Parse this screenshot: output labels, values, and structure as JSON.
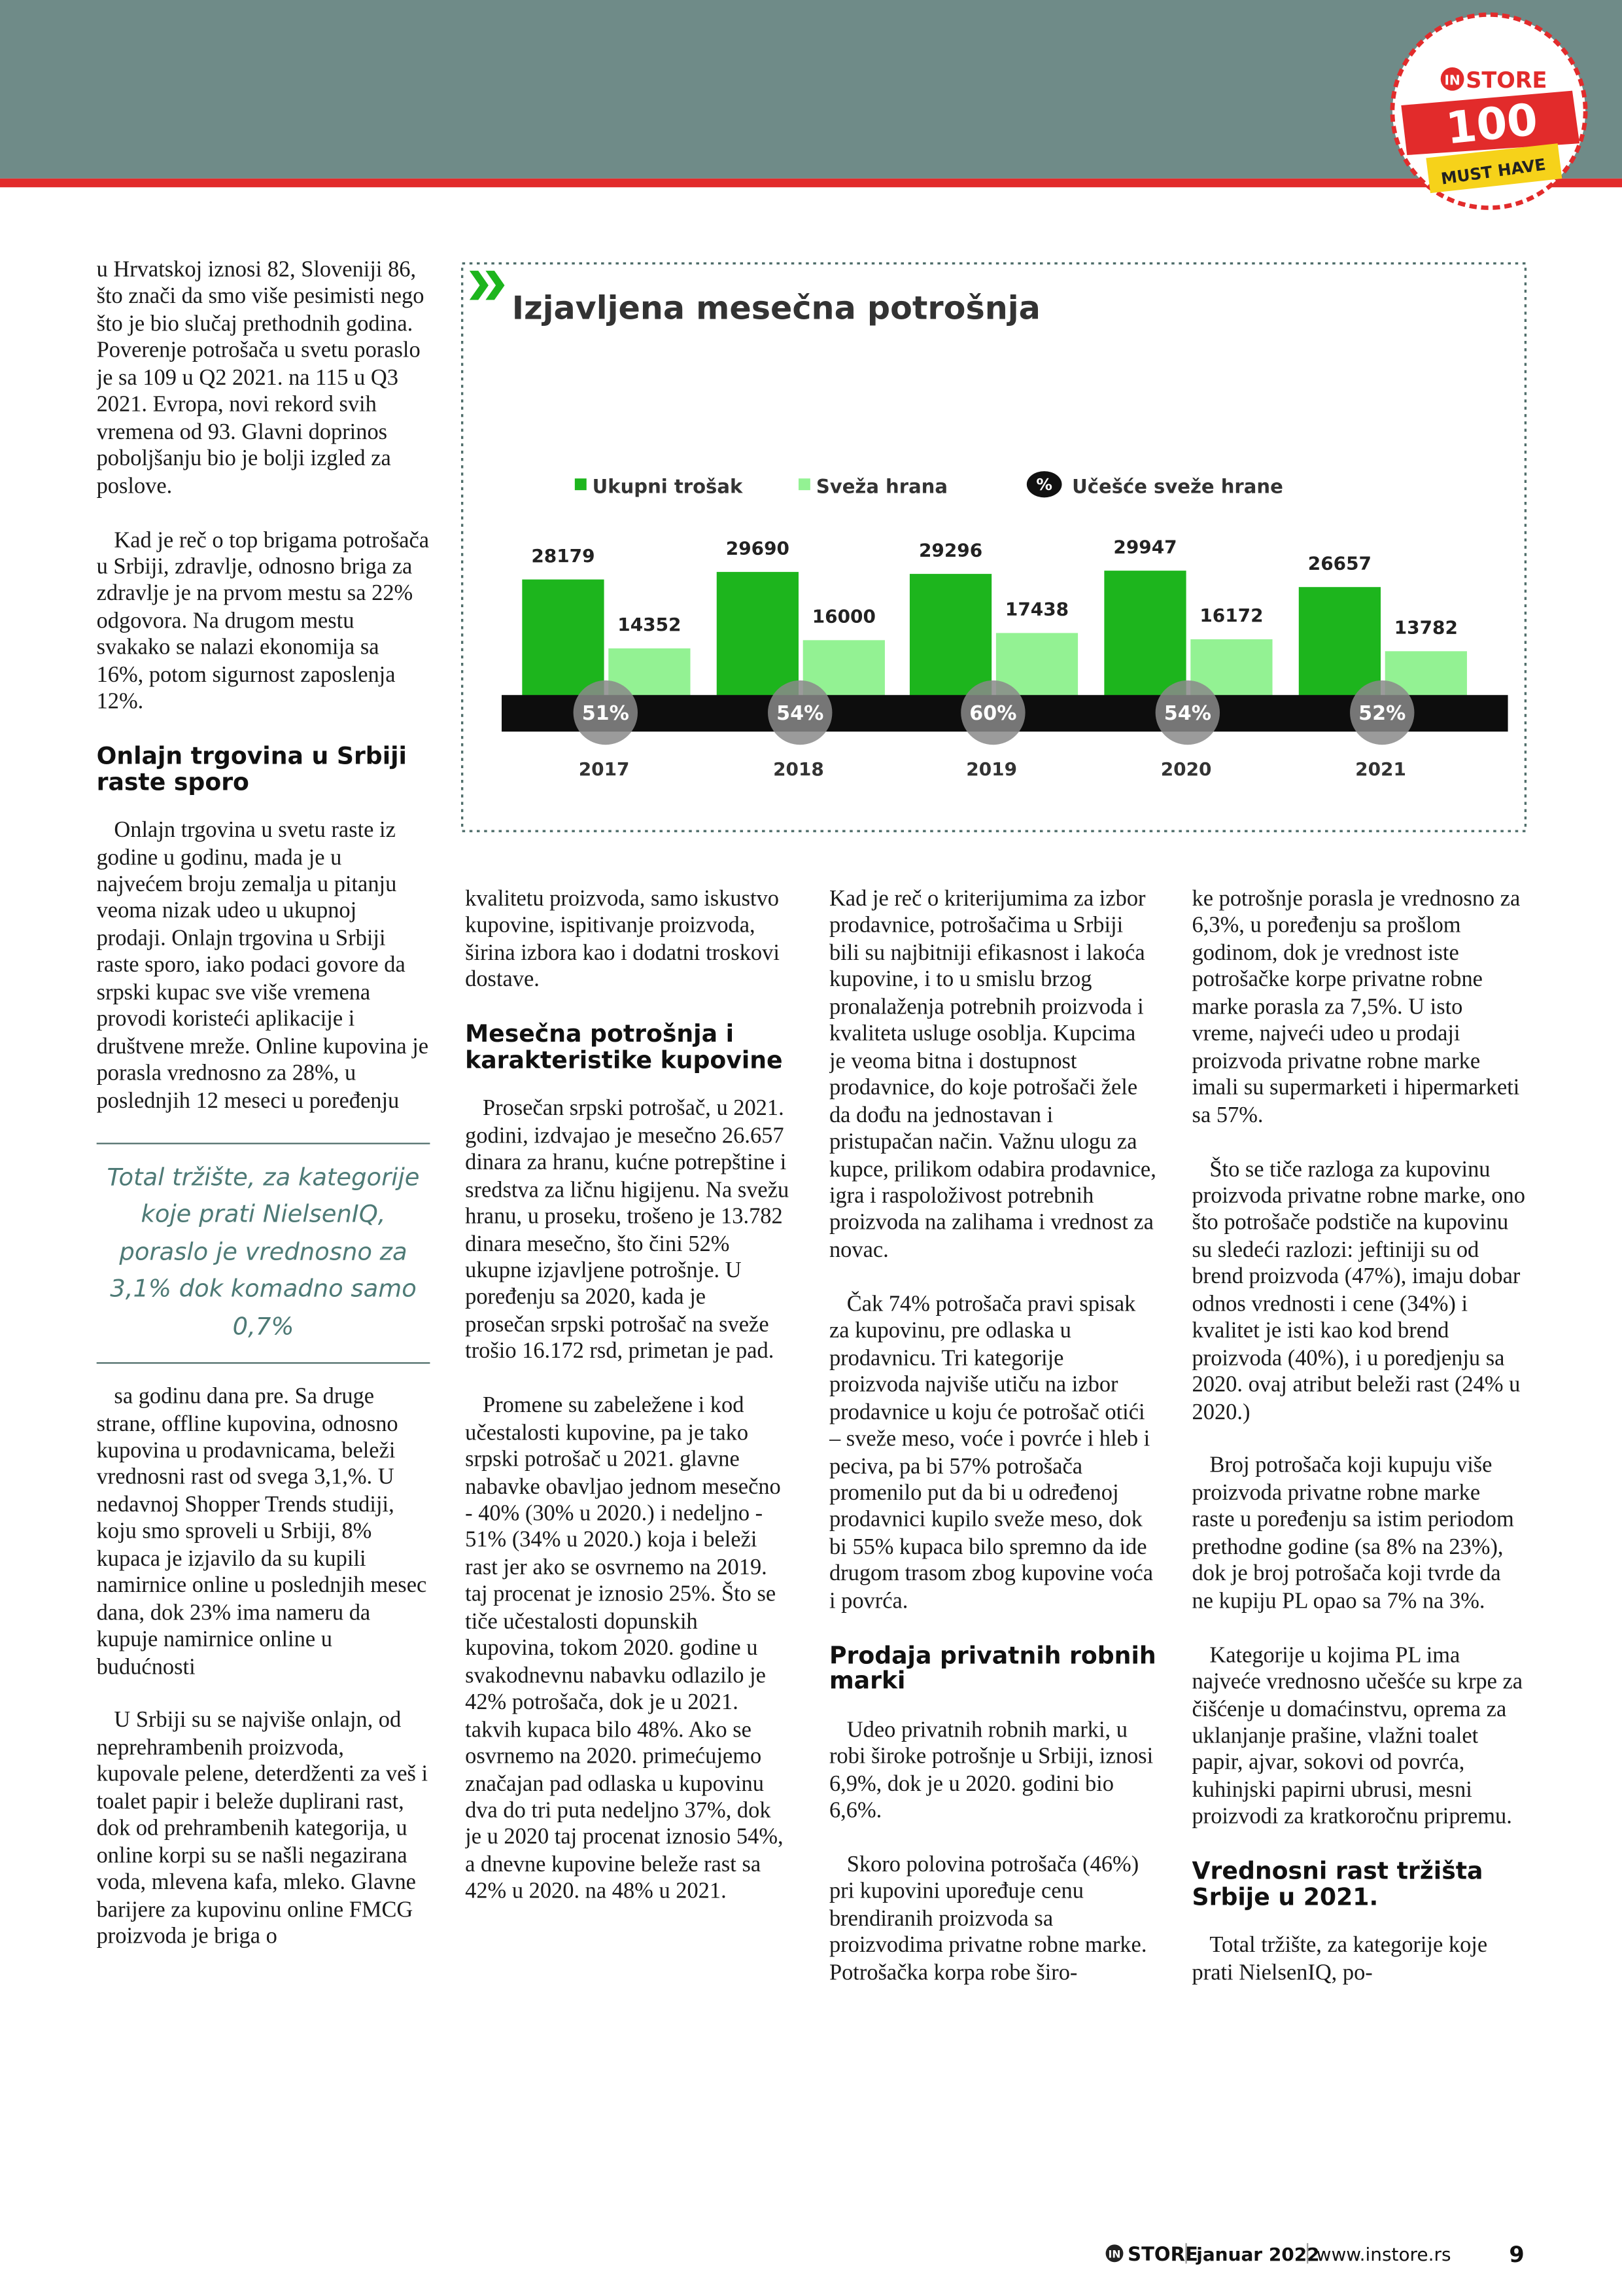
{
  "badge": {
    "in": "IN",
    "store": "STORE",
    "number": "100",
    "tag": "MUST HAVE"
  },
  "chart": {
    "title": "Izjavljena mesečna potrošnja",
    "categories": [
      "2017",
      "2018",
      "2019",
      "2020",
      "2021"
    ],
    "series": [
      {
        "name": "Ukupni trošak",
        "color": "#1db51d",
        "values": [
          28179,
          29690,
          29296,
          29947,
          26657
        ]
      },
      {
        "name": "Sveža hrana",
        "color": "#93f293",
        "values": [
          14352,
          16000,
          17438,
          16172,
          13782
        ]
      }
    ],
    "share": {
      "symbol": "%",
      "name": "Učešće sveže hrane",
      "values": [
        51,
        54,
        60,
        54,
        52
      ],
      "value_labels": [
        "51%",
        "54%",
        "60%",
        "54%",
        "52%"
      ]
    }
  },
  "columns": [
    [
      {
        "paragraph": "u Hrvatskoj iznosi 82, Sloveniji 86, što znači da smo više pesimisti nego što je bio slučaj prethodnih godina. Poverenje potrošača u svetu poraslo je sa 109 u Q2 2021. na 115 u Q3 2021. Evropa, novi rekord svih vremena od 93. Glavni doprinos poboljšanju bio je bolji izgled za poslove."
      },
      {
        "paragraph": "Kad je reč o top brigama potrošača u Srbiji, zdravlje, odnosno briga za zdravlje je na prvom mestu sa 22% odgovora. Na drugom mestu svakako se nalazi ekonomija sa 16%, potom sigurnost zaposlenja 12%."
      },
      {
        "heading": "Onlajn trgovina u Srbiji raste sporo"
      },
      {
        "paragraph": "Onlajn trgovina u svetu raste iz godine u godinu, mada je u najvećem broju zemalja u pitanju veoma nizak udeo u ukupnoj prodaji. Onlajn trgovina u Srbiji raste sporo, iako podaci govore da srpski kupac sve više vremena provodi koristeći aplikacije i društvene mreže. Online kupovina je porasla vrednosno za 28%, u poslednjih 12 meseci u poređenju"
      },
      {
        "quote": "Total tržište, za kategorije koje prati NielsenIQ, poraslo je vrednosno za 3,1% dok komadno samo 0,7%"
      },
      {
        "paragraph": "sa godinu dana pre. Sa druge strane, offline kupovina, odnosno kupovina u prodavnicama, beleži vrednosni rast od svega 3,1,%. U nedavnoj Shopper Trends studiji, koju smo sproveli u Srbiji, 8% kupaca je izjavilo da su kupili namirnice online u poslednjih mesec dana, dok 23% ima nameru da kupuje namirnice online u budućnosti"
      },
      {
        "paragraph": "U Srbiji su se najviše onlajn, od neprehrambenih proizvoda, kupovale pelene, deterdženti za veš i toalet papir i beleže duplirani rast, dok od prehrambenih kategorija, u online korpi su se našli negazirana voda, mlevena kafa, mleko. Glavne barijere za kupovinu online FMCG proizvoda je briga o"
      }
    ],
    [
      {
        "paragraph": "kvalitetu proizvoda, samo iskustvo kupovine, ispitivanje proizvoda, širina izbora kao i  dodatni troskovi dostave."
      },
      {
        "heading": "Mesečna potrošnja i karakteristike kupovine"
      },
      {
        "paragraph": "Prosečan srpski potrošač, u 2021. godini, izdvajao je mesečno 26.657 dinara za hranu, kućne potrepštine i sredstva za ličnu higijenu. Na svežu hranu, u proseku, trošeno je 13.782 dinara mesečno, što čini 52% ukupne izjavljene potrošnje. U poređenju sa 2020, kada je prosečan srpski potrošač na sveže trošio 16.172 rsd, primetan je pad."
      },
      {
        "paragraph": "Promene su zabeležene i kod učestalosti kupovine, pa je tako srpski potrošač u 2021. glavne nabavke obavljao jednom mesečno - 40% (30% u 2020.) i nedeljno - 51% (34% u 2020.) koja i beleži rast jer ako se osvrnemo na 2019. taj procenat je iznosio 25%. Što se tiče učestalosti dopunskih kupovina, tokom 2020. godine u svakodnevnu nabavku odlazilo je 42% potrošača, dok je u 2021. takvih kupaca bilo 48%. Ako se osvrnemo na 2020. primećujemo značajan pad odlaska u kupovinu dva do tri puta nedeljno 37%, dok je u 2020 taj procenat iznosio 54%, a dnevne kupovine beleže rast sa 42% u 2020. na 48% u 2021."
      }
    ],
    [
      {
        "paragraph": "Kad je reč o kriterijumima za izbor prodavnice, potrošačima u Srbiji bili su najbitniji efikasnost i lakoća kupovine, i to u smislu brzog pronalaženja potrebnih proizvoda i kvaliteta usluge osoblja. Kupcima je veoma bitna i dostupnost prodavnice, do koje potrošači žele da dođu na jednostavan i pristupačan način. Važnu ulogu za kupce, prilikom odabira prodavnice, igra i raspoloživost potrebnih proizvoda na zalihama i vrednost za novac."
      },
      {
        "paragraph": "Čak 74% potrošača pravi spisak za kupovinu, pre odlaska u prodavnicu. Tri kategorije proizvoda najviše utiču na izbor prodavnice u koju će potrošač otići – sveže meso, voće i povrće i hleb i peciva, pa bi 57% potrošača promenilo put da bi u određenoj prodavnici kupilo sveže meso, dok bi 55% kupaca bilo spremno da ide drugom trasom zbog kupovine voća i povrća."
      },
      {
        "heading": "Prodaja privatnih robnih marki"
      },
      {
        "paragraph": "Udeo privatnih robnih marki, u robi široke potrošnje u Srbiji, iznosi 6,9%, dok je u 2020. godini bio 6,6%."
      },
      {
        "paragraph": "Skoro polovina potrošača (46%) pri kupovini upoređuje cenu brendiranih proizvoda sa proizvodima privatne robne marke. Potrošačka korpa robe širo-"
      }
    ],
    [
      {
        "paragraph": "ke potrošnje porasla je vrednosno za 6,3%, u poređenju sa prošlom godinom, dok je vrednost iste potrošačke korpe privatne robne marke porasla za 7,5%. U isto vreme, najveći udeo u prodaji proizvoda privatne robne marke imali su supermarketi i hipermarketi sa 57%."
      },
      {
        "paragraph": "Što se tiče razloga za kupovinu proizvoda privatne robne marke, ono što potrošače podstiče na kupovinu su sledeći razlozi: jeftiniji su od brend proizvoda (47%), imaju dobar odnos vrednosti i cene (34%) i kvalitet je isti kao kod brend proizvoda (40%), i u poredjenju sa 2020. ovaj atribut beleži rast (24% u 2020.)"
      },
      {
        "paragraph": "Broj potrošača koji kupuju više proizvoda privatne robne marke raste u poređenju sa istim periodom prethodne godine (sa 8% na 23%), dok je broj potrošača koji tvrde da ne kupiju PL opao sa 7% na 3%."
      },
      {
        "paragraph": "Kategorije u kojima PL ima najveće vrednosno učešće su krpe za čišćenje u domaćinstvu, oprema za uklanjanje prašine, vlažni toalet papir, ajvar, sokovi od povrća, kuhinjski papirni ubrusi, mesni proizvodi za kratkoročnu pripremu."
      },
      {
        "heading": "Vrednosni rast tržišta Srbije u 2021."
      },
      {
        "paragraph": "Total tržište, za kategorije koje prati NielsenIQ, po-"
      }
    ]
  ],
  "footer": {
    "in": "IN",
    "store": "STORE",
    "issue": "januar 2022",
    "site": "www.instore.rs",
    "page": "9"
  }
}
